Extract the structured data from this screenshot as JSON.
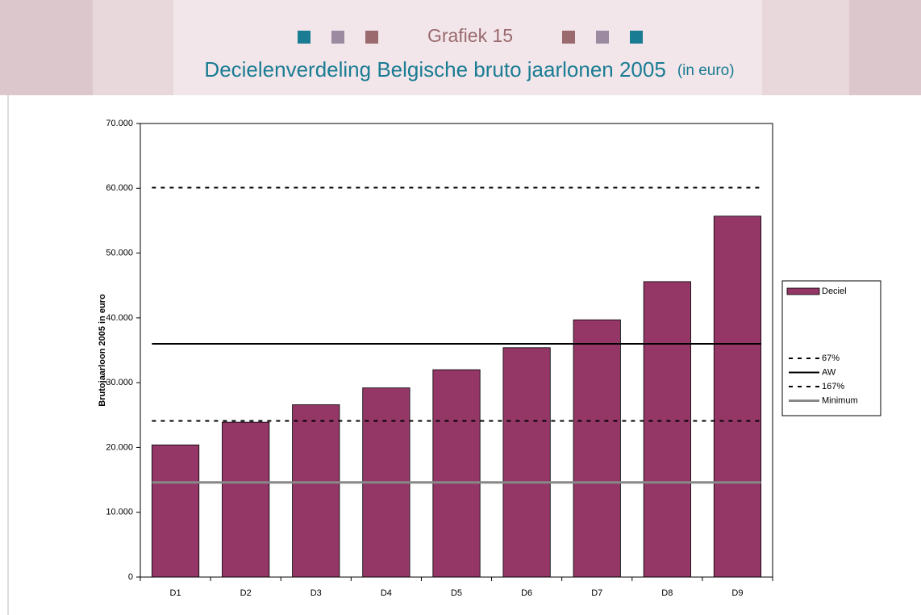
{
  "chart_data": {
    "type": "bar",
    "title": "Grafiek 15",
    "subtitle": "Decielenverdeling Belgische bruto jaarlonen 2005",
    "subtitle_note": "(in euro)",
    "ylabel": "Brutojaarloon 2005 in euro",
    "categories": [
      "D1",
      "D2",
      "D3",
      "D4",
      "D5",
      "D6",
      "D7",
      "D8",
      "D9"
    ],
    "series": [
      {
        "name": "Deciel",
        "type": "bar",
        "color": "#943767",
        "values": [
          20400,
          23900,
          26600,
          29200,
          32000,
          35400,
          39700,
          45600,
          55700
        ]
      },
      {
        "name": "67%",
        "type": "line",
        "style": "dashed",
        "color": "#000000",
        "value": 24100
      },
      {
        "name": "AW",
        "type": "line",
        "style": "solid",
        "color": "#000000",
        "value": 36000
      },
      {
        "name": "167%",
        "type": "line",
        "style": "dashed",
        "color": "#000000",
        "value": 60100
      },
      {
        "name": "Minimum",
        "type": "line",
        "style": "solid",
        "color": "#888888",
        "value": 14600
      }
    ],
    "ylim": [
      0,
      70000
    ],
    "yticks": [
      0,
      {
        "value": 10000,
        "label": "10.000"
      },
      {
        "value": 20000,
        "label": "20.000"
      },
      {
        "value": 30000,
        "label": "30.000"
      },
      {
        "value": 40000,
        "label": "40.000"
      },
      {
        "value": 50000,
        "label": "50.000"
      },
      {
        "value": 60000,
        "label": "60.000"
      },
      {
        "value": 70000,
        "label": "70.000"
      }
    ],
    "grid": false,
    "legend": "right"
  }
}
